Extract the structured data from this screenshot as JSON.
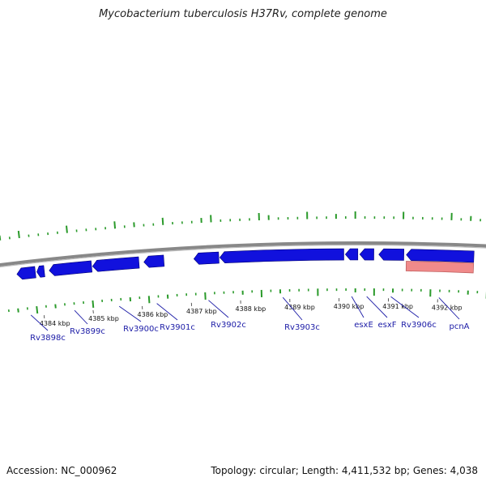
{
  "title": "Mycobacterium tuberculosis H37Rv, complete genome",
  "footer": {
    "accession": "Accession: NC_000962",
    "summary": "Topology: circular; Length: 4,411,532 bp; Genes: 4,038"
  },
  "colors": {
    "gene_forward": "#1111dd",
    "gene_reverse": "#f08a8a",
    "backbone": "#888888",
    "gc_ticks": "#2a9a2a",
    "label_line": "#1a1aa6"
  },
  "ruler": [
    {
      "label": "4384 kbp",
      "kbp": 4384
    },
    {
      "label": "4385 kbp",
      "kbp": 4385
    },
    {
      "label": "4386 kbp",
      "kbp": 4386
    },
    {
      "label": "4387 kbp",
      "kbp": 4387
    },
    {
      "label": "4388 kbp",
      "kbp": 4388
    },
    {
      "label": "4389 kbp",
      "kbp": 4389
    },
    {
      "label": "4390 kbp",
      "kbp": 4390
    },
    {
      "label": "4391 kbp",
      "kbp": 4391
    },
    {
      "label": "4392 kbp",
      "kbp": 4392
    }
  ],
  "genes": [
    {
      "label": "Rv3898c",
      "start": 4383.55,
      "end": 4383.92,
      "strand": "-"
    },
    {
      "label": "",
      "start": 4383.95,
      "end": 4384.1,
      "strand": "-"
    },
    {
      "label": "Rv3899c",
      "start": 4384.2,
      "end": 4385.05,
      "strand": "-"
    },
    {
      "label": "Rv3900c",
      "start": 4385.07,
      "end": 4386.0,
      "strand": "-"
    },
    {
      "label": "Rv3901c",
      "start": 4386.1,
      "end": 4386.5,
      "strand": "-"
    },
    {
      "label": "Rv3902c",
      "start": 4387.1,
      "end": 4387.6,
      "strand": "-"
    },
    {
      "label": "Rv3903c",
      "start": 4387.62,
      "end": 4390.1,
      "strand": "-"
    },
    {
      "label": "esxE",
      "start": 4390.13,
      "end": 4390.38,
      "strand": "-"
    },
    {
      "label": "esxF",
      "start": 4390.42,
      "end": 4390.7,
      "strand": "-"
    },
    {
      "label": "Rv3906c",
      "start": 4390.8,
      "end": 4391.3,
      "strand": "-"
    },
    {
      "label": "pcnA",
      "start": 4391.35,
      "end": 4392.7,
      "strand": "-"
    }
  ],
  "reverse_feature": {
    "start": 4391.35,
    "end": 4392.7
  }
}
